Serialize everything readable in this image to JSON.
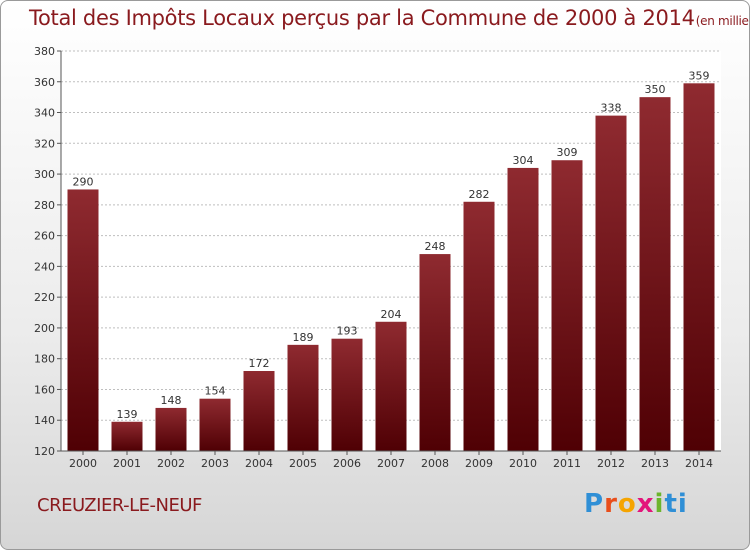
{
  "header": {
    "title": "Total des Impôts Locaux perçus par la Commune de 2000 à 2014",
    "unit": "(en milliers d'€)"
  },
  "commune": "CREUZIER-LE-NEUF",
  "logo": [
    "P",
    "r",
    "o",
    "x",
    "i",
    "ti"
  ],
  "colors": {
    "bar_top": "#8f2a30",
    "bar_bottom": "#4f0004",
    "title": "#8a1a1e"
  },
  "chart_data": {
    "type": "bar",
    "title": "Total des Impôts Locaux perçus par la Commune de 2000 à 2014",
    "unit": "(en milliers d'€)",
    "categories": [
      "2000",
      "2001",
      "2002",
      "2003",
      "2004",
      "2005",
      "2006",
      "2007",
      "2008",
      "2009",
      "2010",
      "2011",
      "2012",
      "2013",
      "2014"
    ],
    "values": [
      290,
      139,
      148,
      154,
      172,
      189,
      193,
      204,
      248,
      282,
      304,
      309,
      338,
      350,
      359
    ],
    "ylim": [
      120,
      380
    ],
    "yticks": [
      120,
      140,
      160,
      180,
      200,
      220,
      240,
      260,
      280,
      300,
      320,
      340,
      360,
      380
    ],
    "grid": "horizontal",
    "legend": "none"
  }
}
